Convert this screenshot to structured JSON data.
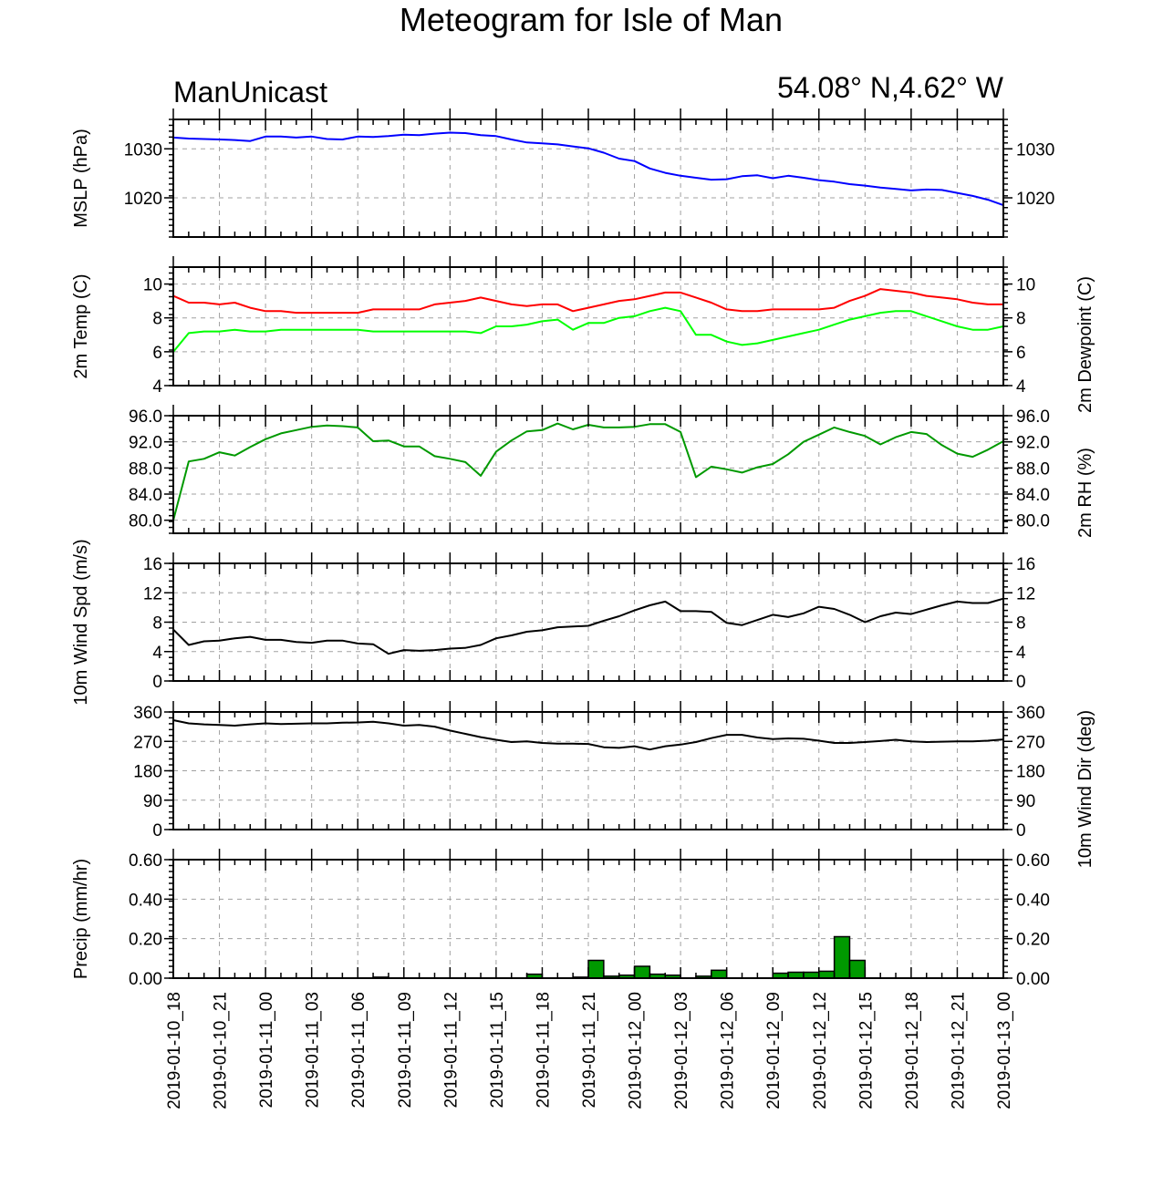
{
  "title": "Meteogram for Isle of Man",
  "left_label": "ManUnicast",
  "right_label": "54.08° N,4.62° W",
  "chart_data": [
    {
      "type": "line",
      "panel": "mslp",
      "ylabel": "MSLP (hPa)",
      "ylim": [
        1012,
        1036
      ],
      "yticks": [
        1020,
        1030
      ],
      "color": "#0000ff",
      "x_hours": [
        0,
        1,
        2,
        3,
        4,
        5,
        6,
        7,
        8,
        9,
        10,
        11,
        12,
        13,
        14,
        15,
        16,
        17,
        18,
        19,
        20,
        21,
        22,
        23,
        24,
        25,
        26,
        27,
        28,
        29,
        30,
        31,
        32,
        33,
        34,
        35,
        36,
        37,
        38,
        39,
        40,
        41,
        42,
        43,
        44,
        45,
        46,
        47,
        48,
        49,
        50,
        51,
        52,
        53,
        54
      ],
      "values": [
        1032.3,
        1032.1,
        1032.0,
        1031.9,
        1031.8,
        1031.6,
        1032.5,
        1032.5,
        1032.3,
        1032.5,
        1032.0,
        1031.9,
        1032.5,
        1032.4,
        1032.6,
        1032.9,
        1032.8,
        1033.1,
        1033.3,
        1033.2,
        1032.8,
        1032.6,
        1031.9,
        1031.3,
        1031.1,
        1030.9,
        1030.5,
        1030.1,
        1029.2,
        1028.0,
        1027.5,
        1026.0,
        1025.1,
        1024.5,
        1024.1,
        1023.7,
        1023.8,
        1024.4,
        1024.6,
        1024.0,
        1024.5,
        1024.1,
        1023.6,
        1023.3,
        1022.8,
        1022.5,
        1022.1,
        1021.8,
        1021.5,
        1021.7,
        1021.6,
        1021.0,
        1020.4,
        1019.6,
        1018.5
      ]
    },
    {
      "type": "line",
      "panel": "temp",
      "ylabel": "2m Temp (C)",
      "ylabel_right": "2m Dewpoint (C)",
      "ylim": [
        4,
        11
      ],
      "yticks": [
        4,
        6,
        8,
        10
      ],
      "x_hours": [
        0,
        1,
        2,
        3,
        4,
        5,
        6,
        7,
        8,
        9,
        10,
        11,
        12,
        13,
        14,
        15,
        16,
        17,
        18,
        19,
        20,
        21,
        22,
        23,
        24,
        25,
        26,
        27,
        28,
        29,
        30,
        31,
        32,
        33,
        34,
        35,
        36,
        37,
        38,
        39,
        40,
        41,
        42,
        43,
        44,
        45,
        46,
        47,
        48,
        49,
        50,
        51,
        52,
        53,
        54
      ],
      "series": [
        {
          "color": "#ff0000",
          "values": [
            9.3,
            8.9,
            8.9,
            8.8,
            8.9,
            8.6,
            8.4,
            8.4,
            8.3,
            8.3,
            8.3,
            8.3,
            8.3,
            8.5,
            8.5,
            8.5,
            8.5,
            8.8,
            8.9,
            9.0,
            9.2,
            9.0,
            8.8,
            8.7,
            8.8,
            8.8,
            8.4,
            8.6,
            8.8,
            9.0,
            9.1,
            9.3,
            9.5,
            9.5,
            9.2,
            8.9,
            8.5,
            8.4,
            8.4,
            8.5,
            8.5,
            8.5,
            8.5,
            8.6,
            9.0,
            9.3,
            9.7,
            9.6,
            9.5,
            9.3,
            9.2,
            9.1,
            8.9,
            8.8,
            8.8
          ]
        },
        {
          "color": "#00ff00",
          "values": [
            6.0,
            7.1,
            7.2,
            7.2,
            7.3,
            7.2,
            7.2,
            7.3,
            7.3,
            7.3,
            7.3,
            7.3,
            7.3,
            7.2,
            7.2,
            7.2,
            7.2,
            7.2,
            7.2,
            7.2,
            7.1,
            7.5,
            7.5,
            7.6,
            7.8,
            7.9,
            7.3,
            7.7,
            7.7,
            8.0,
            8.1,
            8.4,
            8.6,
            8.4,
            7.0,
            7.0,
            6.6,
            6.4,
            6.5,
            6.7,
            6.9,
            7.1,
            7.3,
            7.6,
            7.9,
            8.1,
            8.3,
            8.4,
            8.4,
            8.1,
            7.8,
            7.5,
            7.3,
            7.3,
            7.5
          ]
        }
      ]
    },
    {
      "type": "line",
      "panel": "rh",
      "ylabel_right": "2m RH (%)",
      "ylim": [
        78,
        96
      ],
      "yticks": [
        "80.0",
        "84.0",
        "88.0",
        "92.0",
        "96.0"
      ],
      "color": "#009900",
      "x_hours": [
        0,
        1,
        2,
        3,
        4,
        5,
        6,
        7,
        8,
        9,
        10,
        11,
        12,
        13,
        14,
        15,
        16,
        17,
        18,
        19,
        20,
        21,
        22,
        23,
        24,
        25,
        26,
        27,
        28,
        29,
        30,
        31,
        32,
        33,
        34,
        35,
        36,
        37,
        38,
        39,
        40,
        41,
        42,
        43,
        44,
        45,
        46,
        47,
        48,
        49,
        50,
        51,
        52,
        53,
        54
      ],
      "values": [
        80.0,
        89.0,
        89.4,
        90.4,
        89.9,
        91.2,
        92.4,
        93.3,
        93.8,
        94.3,
        94.5,
        94.4,
        94.2,
        92.1,
        92.2,
        91.3,
        91.3,
        89.8,
        89.4,
        88.9,
        86.8,
        90.5,
        92.2,
        93.6,
        93.8,
        94.8,
        93.9,
        94.6,
        94.2,
        94.2,
        94.3,
        94.7,
        94.7,
        93.5,
        86.6,
        88.2,
        87.8,
        87.3,
        88.1,
        88.6,
        90.1,
        92.0,
        93.1,
        94.2,
        93.5,
        92.9,
        91.6,
        92.7,
        93.5,
        93.2,
        91.5,
        90.2,
        89.7,
        90.8,
        92.1
      ]
    },
    {
      "type": "line",
      "panel": "wspd",
      "ylabel": "10m Wind Spd (m/s)",
      "ylim": [
        0,
        16
      ],
      "yticks": [
        0,
        4,
        8,
        12,
        16
      ],
      "color": "#000000",
      "x_hours": [
        0,
        1,
        2,
        3,
        4,
        5,
        6,
        7,
        8,
        9,
        10,
        11,
        12,
        13,
        14,
        15,
        16,
        17,
        18,
        19,
        20,
        21,
        22,
        23,
        24,
        25,
        26,
        27,
        28,
        29,
        30,
        31,
        32,
        33,
        34,
        35,
        36,
        37,
        38,
        39,
        40,
        41,
        42,
        43,
        44,
        45,
        46,
        47,
        48,
        49,
        50,
        51,
        52,
        53,
        54
      ],
      "values": [
        7.0,
        4.9,
        5.4,
        5.5,
        5.8,
        6.0,
        5.6,
        5.6,
        5.3,
        5.2,
        5.5,
        5.5,
        5.1,
        5.0,
        3.7,
        4.2,
        4.1,
        4.2,
        4.4,
        4.5,
        4.9,
        5.8,
        6.2,
        6.7,
        6.9,
        7.3,
        7.4,
        7.5,
        8.2,
        8.8,
        9.6,
        10.3,
        10.8,
        9.5,
        9.5,
        9.4,
        7.9,
        7.6,
        8.3,
        9.0,
        8.7,
        9.2,
        10.1,
        9.8,
        9.0,
        8.0,
        8.8,
        9.3,
        9.1,
        9.7,
        10.3,
        10.8,
        10.6,
        10.6,
        11.2
      ]
    },
    {
      "type": "line",
      "panel": "wdir",
      "ylabel_right": "10m Wind Dir (deg)",
      "ylim": [
        0,
        360
      ],
      "yticks": [
        0,
        90,
        180,
        270,
        360
      ],
      "color": "#000000",
      "x_hours": [
        0,
        1,
        2,
        3,
        4,
        5,
        6,
        7,
        8,
        9,
        10,
        11,
        12,
        13,
        14,
        15,
        16,
        17,
        18,
        19,
        20,
        21,
        22,
        23,
        24,
        25,
        26,
        27,
        28,
        29,
        30,
        31,
        32,
        33,
        34,
        35,
        36,
        37,
        38,
        39,
        40,
        41,
        42,
        43,
        44,
        45,
        46,
        47,
        48,
        49,
        50,
        51,
        52,
        53,
        54
      ],
      "values": [
        335,
        325,
        322,
        320,
        318,
        322,
        325,
        323,
        324,
        325,
        325,
        327,
        328,
        330,
        325,
        318,
        320,
        315,
        303,
        293,
        283,
        275,
        268,
        270,
        265,
        263,
        263,
        262,
        252,
        250,
        255,
        245,
        255,
        260,
        268,
        280,
        290,
        290,
        282,
        277,
        279,
        278,
        272,
        265,
        265,
        268,
        271,
        275,
        270,
        268,
        269,
        270,
        270,
        272,
        276
      ]
    },
    {
      "type": "bar",
      "panel": "precip",
      "ylabel": "Precip (mm/hr)",
      "ylim": [
        0,
        0.6
      ],
      "yticks": [
        "0.00",
        "0.20",
        "0.40",
        "0.60"
      ],
      "color": "#009900",
      "x_hours": [
        13,
        23,
        26,
        27,
        28,
        29,
        30,
        31,
        32,
        34,
        35,
        39,
        40,
        41,
        42,
        43,
        44
      ],
      "values": [
        0.005,
        0.02,
        0.005,
        0.09,
        0.01,
        0.015,
        0.06,
        0.02,
        0.015,
        0.01,
        0.04,
        0.025,
        0.03,
        0.03,
        0.035,
        0.21,
        0.09
      ]
    }
  ],
  "xaxis": {
    "range_hours": [
      0,
      54
    ],
    "tick_hours": [
      0,
      3,
      6,
      9,
      12,
      15,
      18,
      21,
      24,
      27,
      30,
      33,
      36,
      39,
      42,
      45,
      48,
      51,
      54
    ],
    "tick_labels": [
      "2019-01-10_18",
      "2019-01-10_21",
      "2019-01-11_00",
      "2019-01-11_03",
      "2019-01-11_06",
      "2019-01-11_09",
      "2019-01-11_12",
      "2019-01-11_15",
      "2019-01-11_18",
      "2019-01-11_21",
      "2019-01-12_00",
      "2019-01-12_03",
      "2019-01-12_06",
      "2019-01-12_09",
      "2019-01-12_12",
      "2019-01-12_15",
      "2019-01-12_18",
      "2019-01-12_21",
      "2019-01-13_00"
    ]
  },
  "grid": true
}
